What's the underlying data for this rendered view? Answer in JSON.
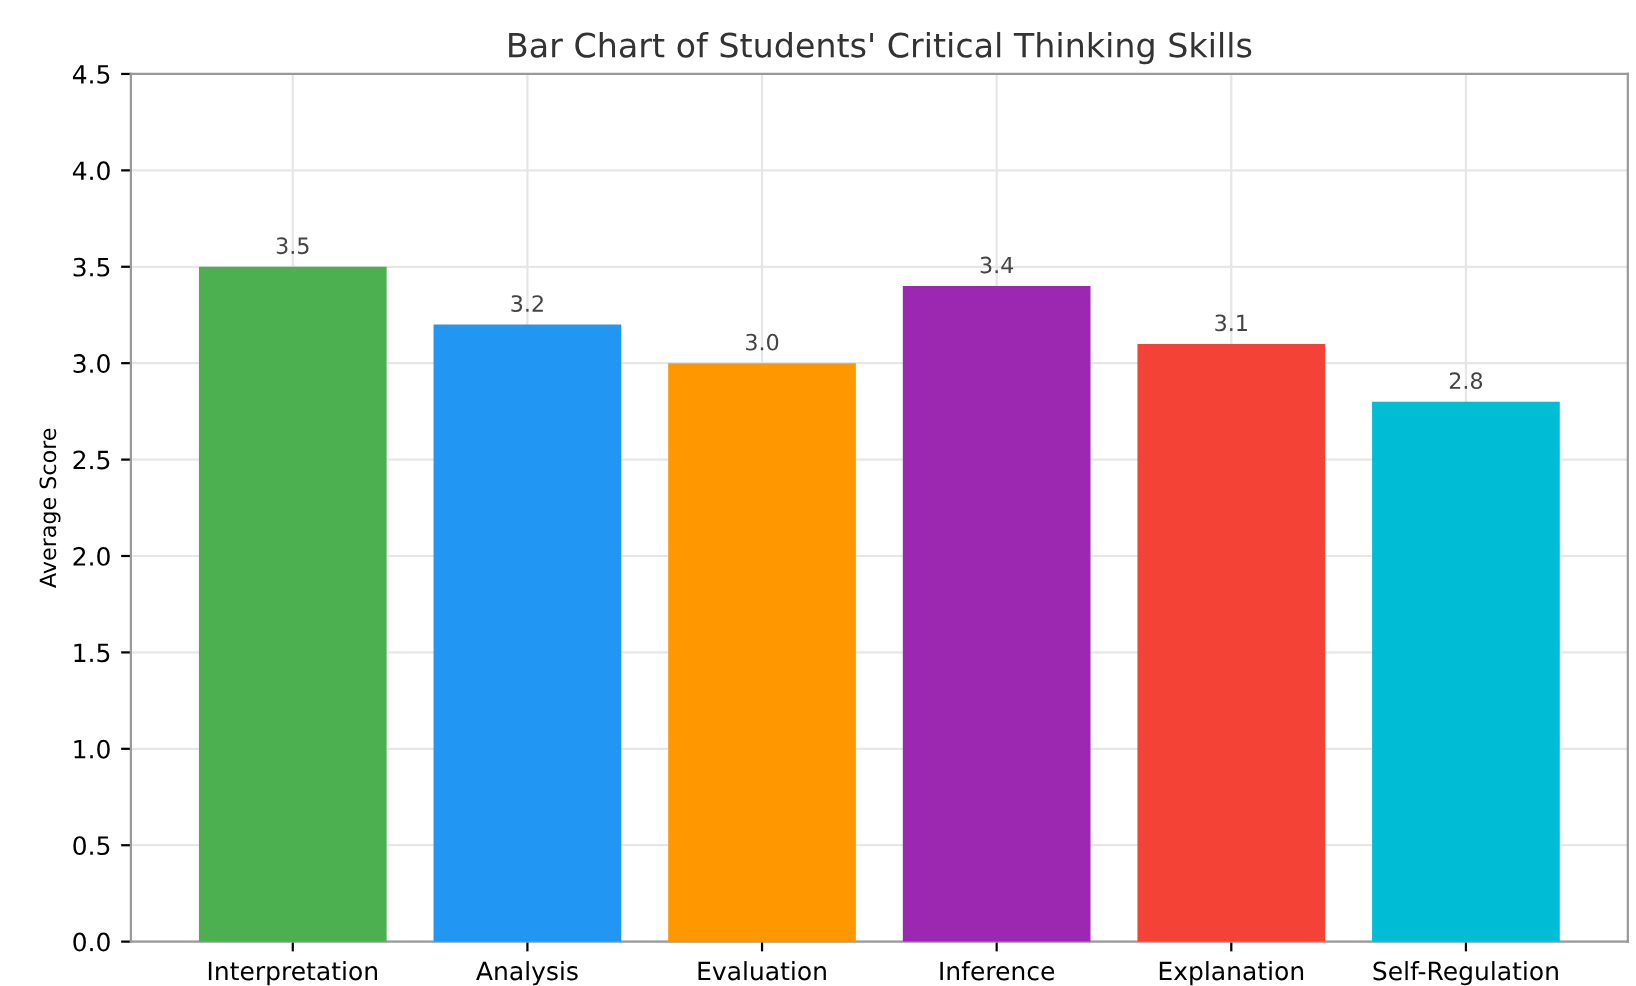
{
  "chart_data": {
    "type": "bar",
    "title": "Bar Chart of Students' Critical Thinking Skills",
    "ylabel": "Average Score",
    "categories": [
      "Interpretation",
      "Analysis",
      "Evaluation",
      "Inference",
      "Explanation",
      "Self-Regulation"
    ],
    "values": [
      3.5,
      3.2,
      3.0,
      3.4,
      3.1,
      2.8
    ],
    "colors": [
      "#4caf50",
      "#2196f3",
      "#ff9800",
      "#9c27b0",
      "#f44336",
      "#00bcd4"
    ],
    "ylim": [
      0,
      4.5
    ],
    "yticks": [
      {
        "value": 0,
        "label": "0.0"
      },
      {
        "value": 0.5,
        "label": "0.5"
      },
      {
        "value": 1,
        "label": "1.0"
      },
      {
        "value": 1.5,
        "label": "1.5"
      },
      {
        "value": 2,
        "label": "2.0"
      },
      {
        "value": 2.5,
        "label": "2.5"
      },
      {
        "value": 3,
        "label": "3.0"
      },
      {
        "value": 3.5,
        "label": "3.5"
      },
      {
        "value": 4,
        "label": "4.0"
      },
      {
        "value": 4.5,
        "label": "4.5"
      }
    ],
    "value_labels": [
      "3.5",
      "3.2",
      "3.0",
      "3.4",
      "3.1",
      "2.8"
    ],
    "grid": true
  }
}
